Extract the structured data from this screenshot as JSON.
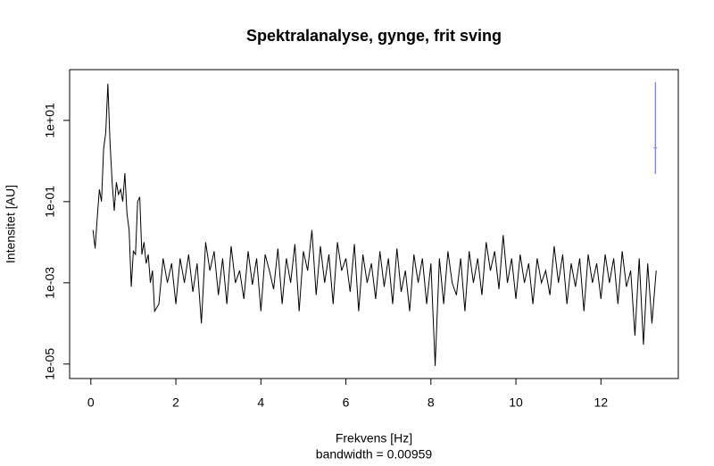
{
  "chart_data": {
    "type": "line",
    "title": "Spektralanalyse, gynge, frit sving",
    "x_label": "Frekvens [Hz]",
    "x_sublabel": "bandwidth = 0.00959",
    "y_label": "Intensitet [AU]",
    "log_y": true,
    "color": "#000000",
    "xlim": [
      -0.5,
      13.82
    ],
    "xticks": [
      0,
      2,
      4,
      6,
      8,
      10,
      12
    ],
    "ylim": [
      4.4e-06,
      178
    ],
    "yticks": [
      {
        "value": 1e-05,
        "label": "1e-05"
      },
      {
        "value": 0.001,
        "label": "1e-03"
      },
      {
        "value": 0.1,
        "label": "1e-01"
      },
      {
        "value": 10,
        "label": "1e+01"
      }
    ],
    "ci": {
      "x": 13.28,
      "low": 0.48,
      "center": 2.1,
      "high": 88,
      "color": "#7777ee"
    },
    "x": [
      0.05,
      0.1,
      0.15,
      0.2,
      0.25,
      0.3,
      0.35,
      0.4,
      0.45,
      0.5,
      0.55,
      0.6,
      0.65,
      0.7,
      0.75,
      0.8,
      0.85,
      0.9,
      0.95,
      1.0,
      1.05,
      1.1,
      1.15,
      1.2,
      1.25,
      1.3,
      1.35,
      1.4,
      1.45,
      1.5,
      1.6,
      1.7,
      1.8,
      1.9,
      2.0,
      2.1,
      2.2,
      2.3,
      2.4,
      2.5,
      2.6,
      2.7,
      2.8,
      2.9,
      3.0,
      3.1,
      3.2,
      3.3,
      3.4,
      3.5,
      3.6,
      3.7,
      3.8,
      3.9,
      4.0,
      4.1,
      4.2,
      4.3,
      4.4,
      4.5,
      4.6,
      4.7,
      4.8,
      4.9,
      5.0,
      5.1,
      5.2,
      5.3,
      5.4,
      5.5,
      5.6,
      5.7,
      5.8,
      5.9,
      6.0,
      6.1,
      6.2,
      6.3,
      6.4,
      6.5,
      6.6,
      6.7,
      6.8,
      6.9,
      7.0,
      7.1,
      7.2,
      7.3,
      7.4,
      7.5,
      7.6,
      7.7,
      7.8,
      7.9,
      8.0,
      8.1,
      8.2,
      8.3,
      8.4,
      8.5,
      8.6,
      8.7,
      8.8,
      8.9,
      9.0,
      9.1,
      9.2,
      9.3,
      9.4,
      9.5,
      9.6,
      9.7,
      9.8,
      9.9,
      10.0,
      10.1,
      10.2,
      10.3,
      10.4,
      10.5,
      10.6,
      10.7,
      10.8,
      10.9,
      11.0,
      11.1,
      11.2,
      11.3,
      11.4,
      11.5,
      11.6,
      11.7,
      11.8,
      11.9,
      12.0,
      12.1,
      12.2,
      12.3,
      12.4,
      12.5,
      12.6,
      12.7,
      12.8,
      12.9,
      13.0,
      13.1,
      13.2,
      13.3
    ],
    "values": [
      0.02,
      0.007,
      0.04,
      0.2,
      0.1,
      2,
      5,
      80,
      3,
      0.3,
      0.06,
      0.3,
      0.15,
      0.2,
      0.1,
      0.5,
      0.05,
      0.02,
      0.0008,
      0.006,
      0.005,
      0.1,
      0.13,
      0.005,
      0.01,
      0.003,
      0.005,
      0.001,
      0.002,
      0.0002,
      0.0003,
      0.004,
      0.001,
      0.003,
      0.0003,
      0.004,
      0.001,
      0.005,
      0.0006,
      0.003,
      0.0001,
      0.01,
      0.002,
      0.006,
      0.0005,
      0.004,
      0.0003,
      0.008,
      0.001,
      0.002,
      0.0004,
      0.006,
      0.0009,
      0.004,
      0.0002,
      0.005,
      0.002,
      0.0007,
      0.007,
      0.0003,
      0.004,
      0.001,
      0.009,
      0.0002,
      0.006,
      0.002,
      0.02,
      0.0005,
      0.008,
      0.001,
      0.005,
      0.0003,
      0.01,
      0.002,
      0.004,
      0.0006,
      0.009,
      0.0002,
      0.005,
      0.001,
      0.003,
      0.0004,
      0.006,
      0.0008,
      0.004,
      0.0003,
      0.007,
      0.0006,
      0.002,
      0.0002,
      0.005,
      0.001,
      0.004,
      0.0003,
      0.003,
      9e-06,
      0.004,
      0.0003,
      0.006,
      0.001,
      0.0005,
      0.004,
      0.0002,
      0.006,
      0.001,
      0.004,
      0.0005,
      0.01,
      0.002,
      0.006,
      0.0007,
      0.015,
      0.001,
      0.004,
      0.0004,
      0.005,
      0.001,
      0.003,
      0.0003,
      0.004,
      0.001,
      0.002,
      0.0005,
      0.008,
      0.001,
      0.005,
      0.0003,
      0.003,
      0.0008,
      0.004,
      0.0002,
      0.005,
      0.001,
      0.003,
      0.0004,
      0.005,
      0.001,
      0.004,
      0.0003,
      0.006,
      0.0008,
      0.002,
      5e-05,
      0.004,
      3e-05,
      0.003,
      0.0001,
      0.002
    ]
  }
}
